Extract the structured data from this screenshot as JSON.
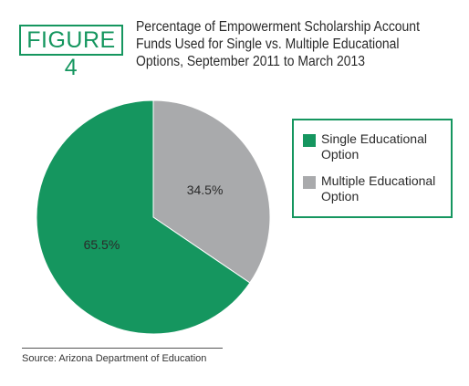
{
  "figure_label": "FIGURE 4",
  "title_lines": [
    "Percentage of Empowerment Scholarship Account",
    "Funds Used for Single vs. Multiple Educational",
    "Options, September 2011 to March 2013"
  ],
  "source": "Source: Arizona Department of Education",
  "colors": {
    "accent": "#15965f",
    "single": "#15965f",
    "multiple": "#a9aaac"
  },
  "chart_data": {
    "type": "pie",
    "slices": [
      {
        "label": "Single Educational Option",
        "value": 65.5,
        "display": "65.5%",
        "color": "#15965f"
      },
      {
        "label": "Multiple Educational Option",
        "value": 34.5,
        "display": "34.5%",
        "color": "#a9aaac"
      }
    ],
    "legend": {
      "position": "right",
      "entries": [
        {
          "lines": [
            "Single Educational",
            "Option"
          ],
          "color": "#15965f"
        },
        {
          "lines": [
            "Multiple Educational",
            "Option"
          ],
          "color": "#a9aaac"
        }
      ]
    }
  }
}
